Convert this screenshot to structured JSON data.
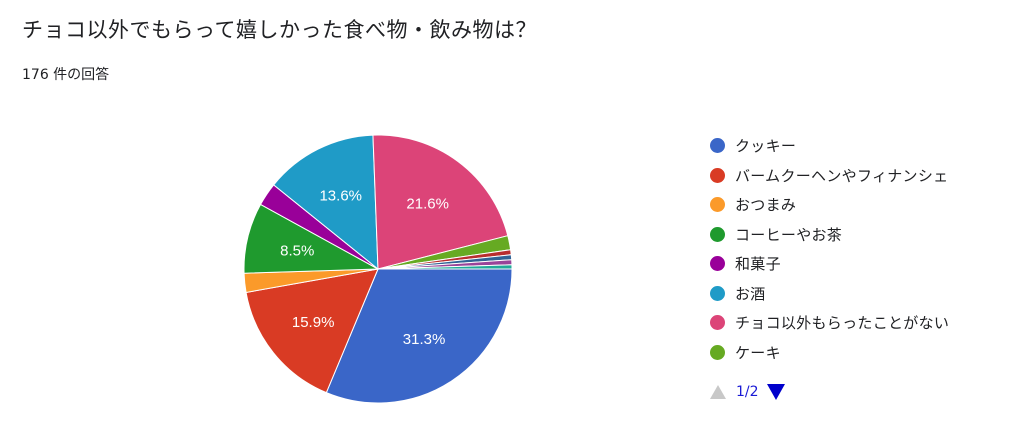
{
  "header": {
    "title": "チョコ以外でもらって嬉しかった食べ物・飲み物は？",
    "response_count": "176 件の回答"
  },
  "pager": {
    "page": "1/2"
  },
  "chart_data": {
    "type": "pie",
    "title": "チョコ以外でもらって嬉しかった食べ物・飲み物は？",
    "slices": [
      {
        "label": "クッキー",
        "value": 31.3,
        "color": "#3a66c8",
        "show_label": true
      },
      {
        "label": "バームクーヘンやフィナンシェ",
        "value": 15.9,
        "color": "#d93b24",
        "show_label": true
      },
      {
        "label": "おつまみ",
        "value": 2.3,
        "color": "#fb9a2a",
        "show_label": false
      },
      {
        "label": "コーヒーやお茶",
        "value": 8.5,
        "color": "#1f9a2e",
        "show_label": true
      },
      {
        "label": "和菓子",
        "value": 2.8,
        "color": "#990099",
        "show_label": false
      },
      {
        "label": "お酒",
        "value": 13.6,
        "color": "#1f9bc7",
        "show_label": true
      },
      {
        "label": "チョコ以外もらったことがない",
        "value": 21.6,
        "color": "#dc4478",
        "show_label": true
      },
      {
        "label": "ケーキ",
        "value": 1.7,
        "color": "#66aa22",
        "show_label": false
      },
      {
        "value": 0.6,
        "color": "#b82e2e",
        "show_label": false
      },
      {
        "value": 0.6,
        "color": "#316395",
        "show_label": false
      },
      {
        "value": 0.6,
        "color": "#994499",
        "show_label": false
      },
      {
        "value": 0.5,
        "color": "#22aa99",
        "show_label": false
      }
    ],
    "legend_position": "right"
  }
}
